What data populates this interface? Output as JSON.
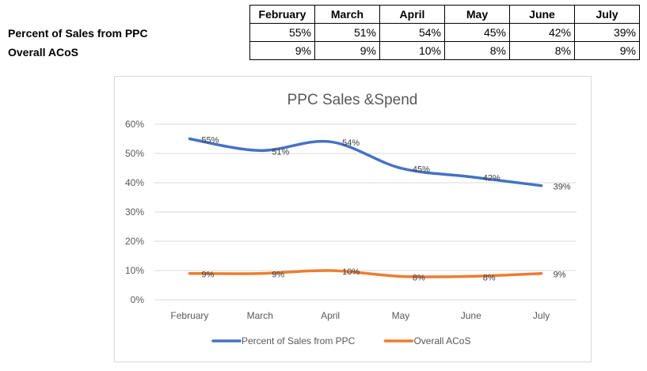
{
  "table": {
    "months": [
      "February",
      "March",
      "April",
      "May",
      "June",
      "July"
    ],
    "rows": [
      {
        "label": "Percent of Sales from PPC",
        "values": [
          "55%",
          "51%",
          "54%",
          "45%",
          "42%",
          "39%"
        ]
      },
      {
        "label": "Overall ACoS",
        "values": [
          "9%",
          "9%",
          "10%",
          "8%",
          "8%",
          "9%"
        ]
      }
    ]
  },
  "chart_data": {
    "type": "line",
    "title": "PPC Sales &Spend",
    "categories": [
      "February",
      "March",
      "April",
      "May",
      "June",
      "July"
    ],
    "ylim": [
      0,
      60
    ],
    "yticks": [
      "0%",
      "10%",
      "20%",
      "30%",
      "40%",
      "50%",
      "60%"
    ],
    "grid": true,
    "legend": "bottom",
    "series": [
      {
        "name": "Percent of Sales from PPC",
        "values": [
          55,
          51,
          54,
          45,
          42,
          39
        ],
        "labels": [
          "55%",
          "51%",
          "54%",
          "45%",
          "42%",
          "39%"
        ],
        "color": "#4472c4"
      },
      {
        "name": "Overall ACoS",
        "values": [
          9,
          9,
          10,
          8,
          8,
          9
        ],
        "labels": [
          "9%",
          "9%",
          "10%",
          "8%",
          "8%",
          "9%"
        ],
        "color": "#ed7d31"
      }
    ]
  }
}
